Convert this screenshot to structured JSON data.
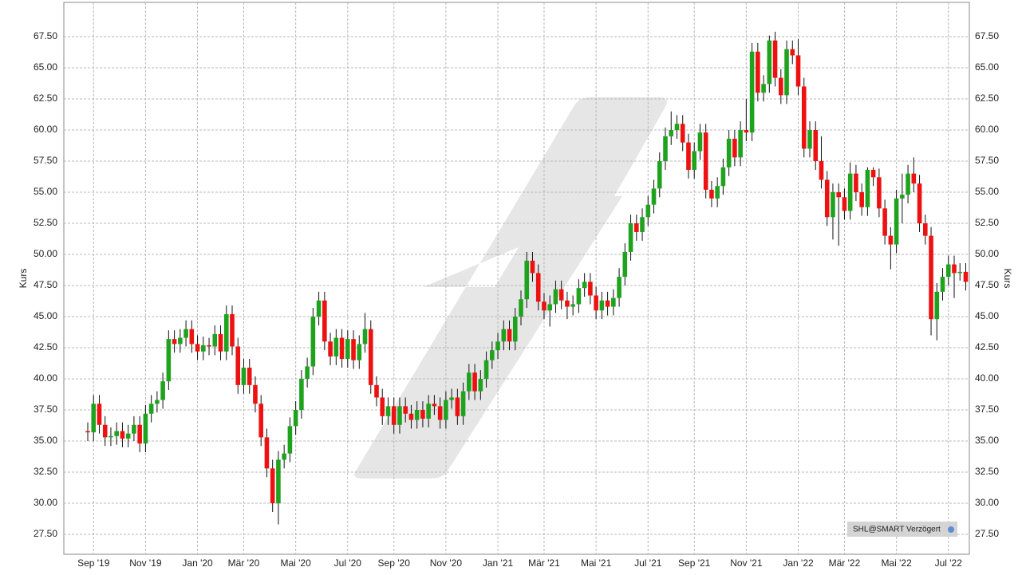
{
  "chart_data": {
    "type": "candlestick",
    "y_label": "Kurs",
    "badge": "SHL@SMART Verzögert",
    "up_color": "#1fa31f",
    "down_color": "#ee1111",
    "grid": true,
    "ylim": [
      25.9,
      70.26
    ],
    "yticks": [
      {
        "value": 27.5,
        "label": "27.50"
      },
      {
        "value": 30,
        "label": "30.00"
      },
      {
        "value": 32.5,
        "label": "32.50"
      },
      {
        "value": 35,
        "label": "35.00"
      },
      {
        "value": 37.5,
        "label": "37.50"
      },
      {
        "value": 40,
        "label": "40.00"
      },
      {
        "value": 42.5,
        "label": "42.50"
      },
      {
        "value": 45,
        "label": "45.00"
      },
      {
        "value": 47.5,
        "label": "47.50"
      },
      {
        "value": 50,
        "label": "50.00"
      },
      {
        "value": 52.5,
        "label": "52.50"
      },
      {
        "value": 55,
        "label": "55.00"
      },
      {
        "value": 57.5,
        "label": "57.50"
      },
      {
        "value": 60,
        "label": "60.00"
      },
      {
        "value": 62.5,
        "label": "62.50"
      },
      {
        "value": 65,
        "label": "65.00"
      },
      {
        "value": 67.5,
        "label": "67.50"
      }
    ],
    "categories": [
      null,
      "Sep '19",
      null,
      null,
      null,
      null,
      null,
      null,
      null,
      null,
      "Nov '19",
      null,
      null,
      null,
      null,
      null,
      null,
      null,
      null,
      "Jan '20",
      null,
      null,
      null,
      null,
      null,
      null,
      null,
      "Mär '20",
      null,
      null,
      null,
      null,
      null,
      null,
      null,
      null,
      "Mai '20",
      null,
      null,
      null,
      null,
      null,
      null,
      null,
      null,
      "Jul '20",
      null,
      null,
      null,
      null,
      null,
      null,
      null,
      "Sep '20",
      null,
      null,
      null,
      null,
      null,
      null,
      null,
      null,
      "Nov '20",
      null,
      null,
      null,
      null,
      null,
      null,
      null,
      null,
      "Jan '21",
      null,
      null,
      null,
      null,
      null,
      null,
      null,
      "Mär '21",
      null,
      null,
      null,
      null,
      null,
      null,
      null,
      null,
      "Mai '21",
      null,
      null,
      null,
      null,
      null,
      null,
      null,
      null,
      "Jul '21",
      null,
      null,
      null,
      null,
      null,
      null,
      null,
      "Sep '21",
      null,
      null,
      null,
      null,
      null,
      null,
      null,
      null,
      "Nov '21",
      null,
      null,
      null,
      null,
      null,
      null,
      null,
      null,
      "Jan '22",
      null,
      null,
      null,
      null,
      null,
      null,
      null,
      "Mär '22",
      null,
      null,
      null,
      null,
      null,
      null,
      null,
      null,
      "Mai '22",
      null,
      null,
      null,
      null,
      null,
      null,
      null,
      null,
      "Jul '22",
      null,
      null,
      null
    ],
    "ohlc": [
      [
        35.8,
        36.5,
        35.0,
        35.7
      ],
      [
        35.7,
        38.7,
        35.0,
        38.0
      ],
      [
        38.0,
        38.7,
        35.6,
        36.3
      ],
      [
        36.3,
        37.0,
        34.6,
        35.3
      ],
      [
        35.3,
        36.1,
        34.6,
        35.4
      ],
      [
        35.4,
        36.5,
        34.7,
        35.8
      ],
      [
        35.8,
        36.5,
        34.5,
        35.2
      ],
      [
        35.2,
        36.3,
        34.5,
        35.6
      ],
      [
        35.6,
        37.0,
        35.0,
        36.3
      ],
      [
        36.3,
        37.0,
        34.1,
        34.8
      ],
      [
        34.8,
        37.9,
        34.1,
        37.2
      ],
      [
        37.2,
        38.7,
        36.5,
        38.0
      ],
      [
        38.0,
        39.0,
        37.3,
        38.3
      ],
      [
        38.3,
        40.5,
        37.6,
        39.8
      ],
      [
        39.8,
        43.9,
        39.1,
        43.2
      ],
      [
        43.2,
        43.9,
        42.1,
        42.8
      ],
      [
        42.8,
        44.0,
        42.1,
        43.3
      ],
      [
        43.3,
        44.7,
        42.6,
        44.0
      ],
      [
        44.0,
        44.7,
        42.1,
        42.8
      ],
      [
        42.8,
        43.5,
        41.5,
        42.2
      ],
      [
        42.2,
        43.4,
        41.5,
        42.7
      ],
      [
        42.7,
        43.3,
        41.9,
        42.6
      ],
      [
        42.6,
        44.3,
        41.9,
        43.6
      ],
      [
        43.6,
        44.3,
        41.5,
        42.2
      ],
      [
        42.2,
        45.9,
        41.5,
        45.2
      ],
      [
        45.2,
        45.9,
        41.9,
        42.6
      ],
      [
        42.6,
        43.3,
        38.8,
        39.5
      ],
      [
        39.5,
        41.6,
        38.8,
        40.9
      ],
      [
        40.9,
        41.6,
        38.8,
        39.5
      ],
      [
        39.5,
        40.2,
        37.3,
        38.0
      ],
      [
        38.0,
        38.7,
        34.6,
        35.3
      ],
      [
        35.3,
        36.0,
        32.1,
        32.8
      ],
      [
        32.8,
        33.5,
        29.3,
        30.0
      ],
      [
        30.0,
        34.2,
        28.3,
        33.5
      ],
      [
        33.5,
        34.7,
        32.8,
        34.0
      ],
      [
        34.0,
        36.9,
        33.3,
        36.2
      ],
      [
        36.2,
        38.2,
        35.5,
        37.5
      ],
      [
        37.5,
        40.7,
        36.8,
        40.0
      ],
      [
        40.0,
        41.7,
        39.3,
        41.0
      ],
      [
        41.0,
        45.7,
        40.3,
        45.0
      ],
      [
        45.0,
        47.0,
        44.3,
        46.3
      ],
      [
        46.3,
        47.0,
        42.3,
        43.0
      ],
      [
        43.0,
        43.7,
        41.1,
        41.8
      ],
      [
        41.8,
        44.0,
        41.1,
        43.3
      ],
      [
        43.3,
        44.0,
        40.9,
        41.6
      ],
      [
        41.6,
        43.9,
        40.9,
        43.2
      ],
      [
        43.2,
        43.9,
        40.8,
        41.5
      ],
      [
        41.5,
        43.5,
        40.8,
        42.8
      ],
      [
        42.8,
        45.3,
        42.1,
        44.0
      ],
      [
        44.0,
        44.7,
        38.8,
        39.5
      ],
      [
        39.5,
        40.2,
        37.8,
        38.5
      ],
      [
        38.5,
        39.2,
        36.3,
        37.0
      ],
      [
        37.0,
        38.5,
        36.3,
        37.8
      ],
      [
        37.8,
        38.5,
        35.6,
        36.3
      ],
      [
        36.3,
        38.5,
        35.6,
        37.8
      ],
      [
        37.8,
        38.5,
        36.5,
        37.2
      ],
      [
        37.2,
        37.9,
        36.0,
        36.7
      ],
      [
        36.7,
        38.2,
        36.0,
        37.5
      ],
      [
        37.5,
        38.2,
        36.1,
        36.8
      ],
      [
        36.8,
        38.7,
        36.1,
        38.0
      ],
      [
        38.0,
        38.7,
        37.1,
        37.8
      ],
      [
        37.8,
        38.5,
        36.0,
        36.7
      ],
      [
        36.7,
        39.0,
        36.0,
        38.3
      ],
      [
        38.3,
        39.2,
        37.6,
        38.5
      ],
      [
        38.5,
        39.2,
        36.3,
        37.0
      ],
      [
        37.0,
        39.7,
        36.3,
        39.0
      ],
      [
        39.0,
        41.2,
        38.3,
        40.5
      ],
      [
        40.5,
        41.2,
        38.3,
        39.0
      ],
      [
        39.0,
        40.7,
        38.3,
        40.0
      ],
      [
        40.0,
        42.2,
        39.3,
        41.5
      ],
      [
        41.5,
        43.0,
        40.8,
        42.3
      ],
      [
        42.3,
        43.7,
        41.6,
        43.0
      ],
      [
        43.0,
        44.7,
        42.3,
        44.0
      ],
      [
        44.0,
        44.7,
        42.3,
        43.0
      ],
      [
        43.0,
        45.7,
        42.3,
        45.0
      ],
      [
        45.0,
        47.1,
        44.3,
        46.4
      ],
      [
        46.4,
        50.2,
        45.7,
        49.5
      ],
      [
        49.5,
        50.2,
        47.8,
        48.5
      ],
      [
        48.5,
        49.2,
        45.5,
        46.2
      ],
      [
        46.2,
        46.9,
        44.8,
        45.5
      ],
      [
        45.5,
        46.7,
        44.2,
        46.0
      ],
      [
        46.0,
        47.9,
        45.3,
        47.2
      ],
      [
        47.2,
        47.9,
        45.6,
        46.3
      ],
      [
        46.3,
        47.0,
        44.8,
        45.8
      ],
      [
        45.8,
        46.7,
        45.1,
        46.0
      ],
      [
        46.0,
        48.0,
        45.3,
        47.3
      ],
      [
        47.3,
        48.5,
        46.6,
        47.8
      ],
      [
        47.8,
        48.5,
        46.0,
        46.7
      ],
      [
        46.7,
        47.4,
        44.8,
        45.5
      ],
      [
        45.5,
        47.0,
        44.8,
        46.3
      ],
      [
        46.3,
        47.0,
        45.1,
        45.8
      ],
      [
        45.8,
        47.2,
        45.1,
        46.5
      ],
      [
        46.5,
        48.9,
        45.8,
        48.2
      ],
      [
        48.2,
        50.9,
        47.5,
        50.2
      ],
      [
        50.2,
        53.2,
        49.5,
        52.5
      ],
      [
        52.5,
        53.2,
        51.1,
        51.8
      ],
      [
        51.8,
        53.7,
        51.1,
        53.0
      ],
      [
        53.0,
        54.7,
        52.3,
        54.0
      ],
      [
        54.0,
        56.0,
        53.3,
        55.3
      ],
      [
        55.3,
        58.2,
        54.6,
        57.5
      ],
      [
        57.5,
        60.2,
        56.8,
        59.5
      ],
      [
        59.5,
        61.5,
        58.8,
        60.0
      ],
      [
        60.0,
        61.2,
        59.3,
        60.5
      ],
      [
        60.5,
        61.2,
        58.3,
        59.0
      ],
      [
        59.0,
        59.7,
        56.1,
        56.8
      ],
      [
        56.8,
        59.0,
        56.1,
        58.3
      ],
      [
        58.3,
        60.5,
        57.6,
        59.8
      ],
      [
        59.8,
        60.5,
        54.5,
        55.2
      ],
      [
        55.2,
        55.9,
        53.8,
        54.5
      ],
      [
        54.5,
        56.2,
        53.8,
        55.5
      ],
      [
        55.5,
        57.7,
        54.8,
        57.0
      ],
      [
        57.0,
        60.0,
        56.3,
        59.3
      ],
      [
        59.3,
        60.0,
        57.1,
        57.8
      ],
      [
        57.8,
        60.7,
        57.1,
        60.0
      ],
      [
        60.0,
        62.5,
        59.1,
        59.8
      ],
      [
        59.8,
        67.0,
        59.1,
        66.3
      ],
      [
        66.3,
        67.0,
        62.3,
        63.0
      ],
      [
        63.0,
        64.4,
        62.3,
        63.7
      ],
      [
        63.7,
        67.6,
        63.0,
        67.2
      ],
      [
        67.2,
        67.9,
        63.5,
        64.2
      ],
      [
        64.2,
        64.9,
        62.1,
        62.8
      ],
      [
        62.8,
        67.2,
        62.1,
        66.5
      ],
      [
        66.5,
        67.2,
        65.3,
        66.0
      ],
      [
        66.0,
        67.3,
        62.8,
        63.5
      ],
      [
        63.5,
        64.2,
        57.8,
        58.5
      ],
      [
        58.5,
        60.7,
        57.8,
        60.0
      ],
      [
        60.0,
        60.7,
        56.8,
        57.5
      ],
      [
        57.5,
        59.5,
        55.3,
        56.0
      ],
      [
        56.0,
        56.7,
        52.3,
        53.0
      ],
      [
        53.0,
        55.7,
        51.2,
        55.0
      ],
      [
        55.0,
        55.7,
        50.7,
        54.6
      ],
      [
        54.6,
        55.3,
        52.8,
        53.5
      ],
      [
        53.5,
        57.4,
        52.8,
        56.5
      ],
      [
        56.5,
        57.2,
        54.3,
        55.0
      ],
      [
        55.0,
        55.7,
        53.1,
        53.8
      ],
      [
        53.8,
        57.0,
        53.1,
        56.8
      ],
      [
        56.8,
        57.0,
        55.5,
        56.2
      ],
      [
        56.2,
        56.9,
        53.0,
        53.7
      ],
      [
        53.7,
        54.4,
        50.8,
        51.5
      ],
      [
        51.5,
        52.2,
        48.8,
        50.8
      ],
      [
        50.8,
        55.2,
        50.1,
        54.5
      ],
      [
        54.5,
        56.5,
        52.5,
        54.8
      ],
      [
        54.8,
        57.2,
        54.1,
        56.5
      ],
      [
        56.5,
        57.8,
        55.0,
        55.7
      ],
      [
        55.7,
        56.4,
        51.8,
        52.5
      ],
      [
        52.5,
        53.2,
        50.8,
        51.5
      ],
      [
        51.5,
        52.2,
        43.5,
        44.8
      ],
      [
        44.8,
        47.7,
        43.1,
        47.0
      ],
      [
        47.0,
        48.9,
        46.3,
        48.2
      ],
      [
        48.2,
        49.9,
        47.5,
        49.2
      ],
      [
        49.2,
        49.9,
        46.5,
        48.5
      ],
      [
        48.5,
        49.3,
        47.9,
        48.6
      ],
      [
        48.6,
        49.3,
        47.1,
        47.8
      ]
    ]
  }
}
